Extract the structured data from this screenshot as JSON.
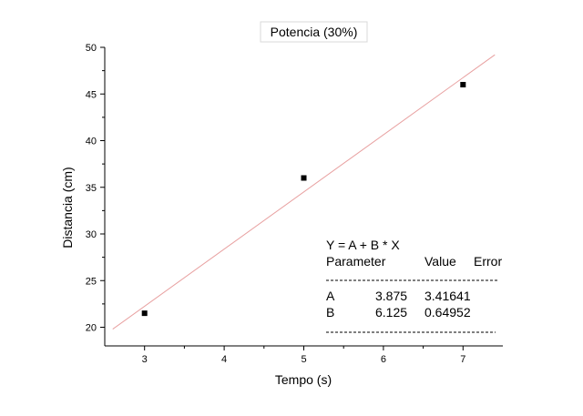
{
  "chart_data": {
    "type": "scatter",
    "title": "Potencia (30%)",
    "xlabel": "Tempo (s)",
    "ylabel": "Distancia (cm)",
    "xlim": [
      2.5,
      7.5
    ],
    "ylim": [
      18,
      50
    ],
    "x_ticks": [
      3,
      4,
      5,
      6,
      7
    ],
    "y_ticks": [
      20,
      25,
      30,
      35,
      40,
      45,
      50
    ],
    "grid": false,
    "series": [
      {
        "x": [
          3,
          5,
          7
        ],
        "y": [
          21.5,
          36,
          46
        ],
        "color": "#000000",
        "marker": "square"
      }
    ],
    "fit_line": {
      "intercept": 3.875,
      "slope": 6.125,
      "x_range": [
        2.6,
        7.4
      ],
      "color": "#e8a0a0"
    },
    "fit_table": {
      "equation": "Y = A + B * X",
      "headers": [
        "Parameter",
        "Value",
        "Error"
      ],
      "separator": "--------------------------------------------",
      "rows": [
        {
          "param": "A",
          "value": "3.875",
          "error": "3.41641"
        },
        {
          "param": "B",
          "value": "6.125",
          "error": "0.64952"
        }
      ]
    }
  }
}
